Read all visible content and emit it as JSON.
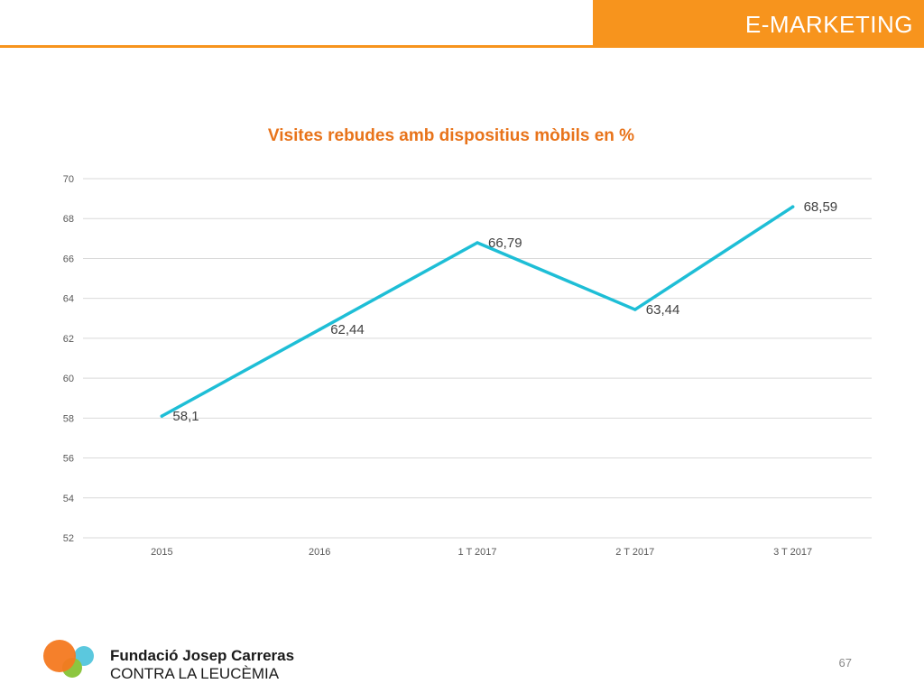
{
  "header": {
    "title": "E-MARKETING"
  },
  "colors": {
    "brand_orange": "#f7941d",
    "title_orange": "#e8731a",
    "line": "#1ebed6",
    "grid": "#d9d9d9",
    "axis_text": "#595959",
    "logo_orange": "#f47920",
    "logo_cyan": "#5bc8de",
    "logo_green": "#8cc63f"
  },
  "chart_data": {
    "type": "line",
    "title": "Visites rebudes amb dispositius mòbils en %",
    "xlabel": "",
    "ylabel": "",
    "categories": [
      "2015",
      "2016",
      "1 T 2017",
      "2 T 2017",
      "3 T 2017"
    ],
    "values": [
      58.1,
      62.44,
      66.79,
      63.44,
      68.59
    ],
    "data_labels": [
      "58,1",
      "62,44",
      "66,79",
      "63,44",
      "68,59"
    ],
    "ylim": [
      52,
      70
    ],
    "yticks": [
      52,
      54,
      56,
      58,
      60,
      62,
      64,
      66,
      68,
      70
    ],
    "grid": true,
    "legend": "none"
  },
  "footer": {
    "org_name": "Fundació Josep Carreras",
    "org_tagline": "CONTRA LA LEUCÈMIA",
    "page_number": "67"
  }
}
